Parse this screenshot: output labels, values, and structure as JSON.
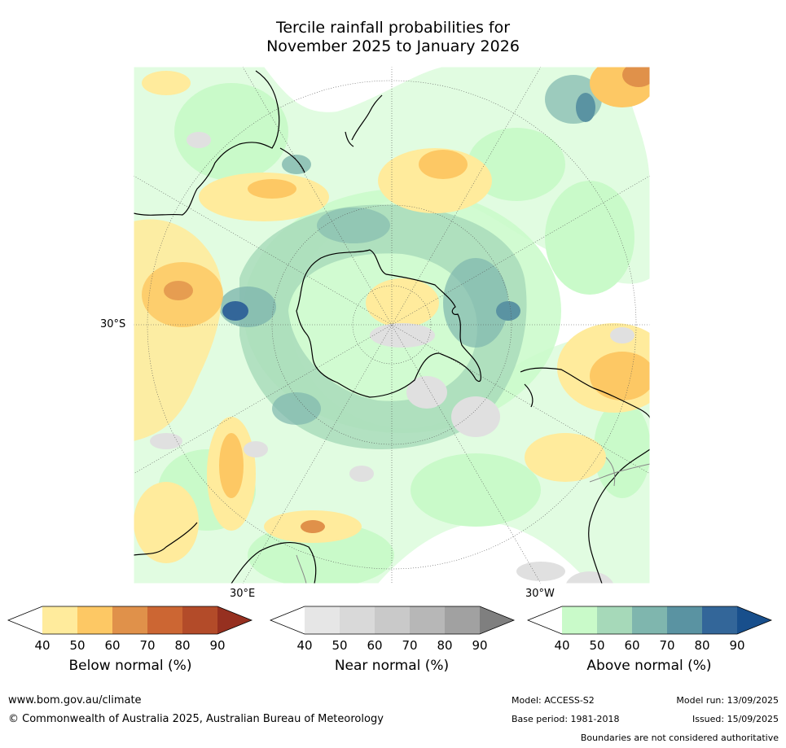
{
  "title": {
    "line1": "Tercile rainfall probabilities for",
    "line2": "November 2025 to January 2026"
  },
  "map": {
    "projection": "south-polar-stereographic",
    "lat_labels": [
      "30°S"
    ],
    "lon_labels": [
      "30°E",
      "30°W"
    ]
  },
  "colorbars": [
    {
      "name": "below-normal",
      "label": "Below normal (%)",
      "ticks": [
        "40",
        "50",
        "60",
        "70",
        "80",
        "90"
      ],
      "colors": [
        "#ffffff",
        "#ffeb9c",
        "#fdc864",
        "#e0914a",
        "#cc6633",
        "#b34b29",
        "#963020"
      ]
    },
    {
      "name": "near-normal",
      "label": "Near normal (%)",
      "ticks": [
        "40",
        "50",
        "60",
        "70",
        "80",
        "90"
      ],
      "colors": [
        "#ffffff",
        "#e6e6e6",
        "#d9d9d9",
        "#c9c9c9",
        "#b7b7b7",
        "#a1a1a1",
        "#7f7f7f"
      ]
    },
    {
      "name": "above-normal",
      "label": "Above normal (%)",
      "ticks": [
        "40",
        "50",
        "60",
        "70",
        "80",
        "90"
      ],
      "colors": [
        "#ffffff",
        "#c9fac9",
        "#a6d9b9",
        "#7fb6ae",
        "#5a93a2",
        "#336699",
        "#184f8c"
      ]
    }
  ],
  "footer": {
    "website": "www.bom.gov.au/climate",
    "copyright": "© Commonwealth of Australia 2025, Australian Bureau of Meteorology",
    "model": "Model: ACCESS-S2",
    "model_run": "Model run: 13/09/2025",
    "base_period": "Base period: 1981-2018",
    "issued": "Issued: 15/09/2025",
    "disclaimer": "Boundaries are not considered authoritative"
  }
}
